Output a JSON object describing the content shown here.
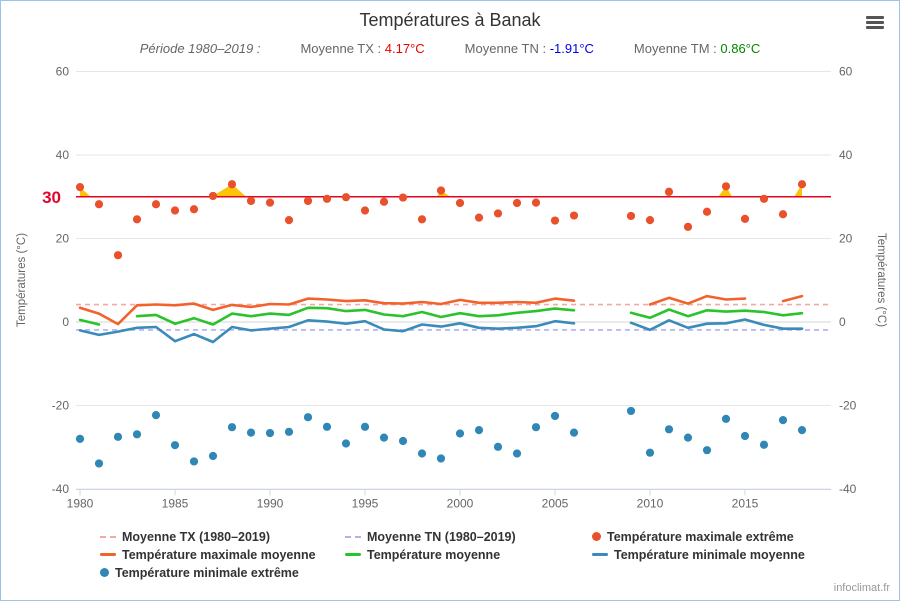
{
  "title": "Températures à Banak",
  "watermark": "infoclimat.fr",
  "subtitle": {
    "periode": "Période 1980–2019 :",
    "items": [
      {
        "label": "Moyenne TX : ",
        "value": "4.17°C",
        "color": "#ee0000"
      },
      {
        "label": "Moyenne TN : ",
        "value": "-1.91°C",
        "color": "#0000ee"
      },
      {
        "label": "Moyenne TM : ",
        "value": "0.86°C",
        "color": "#008800"
      }
    ]
  },
  "legend": {
    "items": [
      {
        "label": "Moyenne TX (1980–2019)",
        "marker": "dash",
        "color": "#f5a9a4"
      },
      {
        "label": "Moyenne TN (1980–2019)",
        "marker": "dash",
        "color": "#b0aff5"
      },
      {
        "label": "Température maximale extrême",
        "marker": "dot",
        "color": "#e8512b"
      },
      {
        "label": "Température maximale moyenne",
        "marker": "line",
        "color": "#f2622c"
      },
      {
        "label": "Température moyenne",
        "marker": "line",
        "color": "#2bc32b"
      },
      {
        "label": "Température minimale moyenne",
        "marker": "line",
        "color": "#3a8abb"
      },
      {
        "label": "Température minimale extrême",
        "marker": "dot",
        "color": "#3087b5"
      }
    ]
  },
  "chart_data": {
    "type": "line",
    "title": "Températures à Banak",
    "xlabel": "",
    "ylabel_left": "Températures (°C)",
    "ylabel_right": "Températures (°C)",
    "ylim": [
      -40,
      62
    ],
    "xlim": [
      1979.8,
      2019.5
    ],
    "grid": true,
    "yticks": [
      60,
      40,
      20,
      0,
      -20,
      -40
    ],
    "xticks": [
      1980,
      1985,
      1990,
      1995,
      2000,
      2005,
      2010,
      2015
    ],
    "threshold": {
      "value": 30,
      "label": "30",
      "color": "#e00620",
      "label_color": "#e00630"
    },
    "plotlines": [
      {
        "name": "Moyenne TX (1980–2019)",
        "value": 4.17,
        "color": "#f5a9a4"
      },
      {
        "name": "Moyenne TN (1980–2019)",
        "value": -1.91,
        "color": "#b0aff5"
      }
    ],
    "x_years": [
      1980,
      1981,
      1982,
      1983,
      1984,
      1985,
      1986,
      1987,
      1988,
      1989,
      1990,
      1991,
      1992,
      1993,
      1994,
      1995,
      1996,
      1997,
      1998,
      1999,
      2000,
      2001,
      2002,
      2003,
      2004,
      2005,
      2006,
      2007,
      2008,
      2009,
      2010,
      2011,
      2012,
      2013,
      2014,
      2015,
      2016,
      2017,
      2018
    ],
    "series": [
      {
        "name": "Température maximale extrême",
        "type": "scatter",
        "color": "#e8512b",
        "fill_above": {
          "threshold": 30,
          "color": "#fdc20a"
        },
        "values": [
          32.3,
          28.2,
          16.0,
          24.6,
          28.2,
          26.7,
          27.0,
          30.2,
          33.0,
          29.0,
          28.6,
          24.4,
          29.0,
          29.5,
          29.9,
          26.7,
          28.8,
          29.8,
          24.6,
          31.5,
          28.5,
          25.0,
          26.0,
          28.5,
          28.6,
          24.3,
          25.5,
          null,
          null,
          25.4,
          24.4,
          31.2,
          22.8,
          26.4,
          32.5,
          24.7,
          29.5,
          25.8,
          33.0
        ]
      },
      {
        "name": "Température maximale moyenne",
        "type": "line",
        "color": "#f2622c",
        "values": [
          3.4,
          2.0,
          -0.5,
          4.0,
          4.2,
          4.0,
          4.4,
          2.9,
          4.1,
          3.6,
          4.3,
          4.2,
          5.6,
          5.4,
          5.0,
          5.2,
          4.5,
          4.4,
          4.8,
          4.3,
          5.3,
          4.6,
          4.6,
          4.8,
          4.6,
          5.6,
          5.1,
          null,
          null,
          null,
          4.2,
          5.8,
          4.4,
          6.2,
          5.4,
          5.6,
          null,
          5.0,
          6.2
        ]
      },
      {
        "name": "Température moyenne",
        "type": "line",
        "color": "#2bc32b",
        "values": [
          0.5,
          -0.6,
          null,
          1.4,
          1.7,
          -0.4,
          0.9,
          -0.6,
          2.0,
          1.4,
          2.0,
          1.7,
          3.4,
          3.3,
          2.6,
          2.9,
          1.8,
          1.4,
          2.4,
          1.2,
          2.1,
          1.4,
          1.6,
          2.2,
          2.6,
          3.2,
          2.8,
          null,
          null,
          2.2,
          1.0,
          3.0,
          1.4,
          2.8,
          2.5,
          2.7,
          2.4,
          1.6,
          2.1
        ]
      },
      {
        "name": "Température minimale moyenne",
        "type": "line",
        "color": "#3a8abb",
        "values": [
          -2.0,
          -3.1,
          -2.3,
          -1.4,
          -1.2,
          -4.6,
          -2.9,
          -4.8,
          -1.2,
          -2.0,
          -1.6,
          -1.2,
          0.4,
          0.1,
          -0.4,
          0.2,
          -1.8,
          -2.2,
          -0.6,
          -1.1,
          -0.3,
          -1.4,
          -1.6,
          -1.4,
          -1.0,
          0.2,
          -0.3,
          null,
          null,
          -0.2,
          -1.9,
          0.4,
          -1.4,
          -0.4,
          -0.3,
          0.6,
          -0.7,
          -1.6,
          -1.6
        ]
      },
      {
        "name": "Température minimale extrême",
        "type": "scatter",
        "color": "#3087b5",
        "values": [
          -28.0,
          -33.9,
          -27.5,
          -26.9,
          -22.3,
          -29.5,
          -33.4,
          -32.1,
          -25.2,
          -26.5,
          -26.6,
          -26.3,
          -22.8,
          -25.1,
          -29.1,
          -25.1,
          -27.7,
          -28.5,
          -31.5,
          -32.7,
          -26.7,
          -25.9,
          -29.9,
          -31.5,
          -25.2,
          -22.5,
          -26.5,
          null,
          null,
          -21.3,
          -31.3,
          -25.7,
          -27.7,
          -30.7,
          -23.2,
          -27.3,
          -29.4,
          -23.5,
          -25.9
        ]
      }
    ]
  }
}
